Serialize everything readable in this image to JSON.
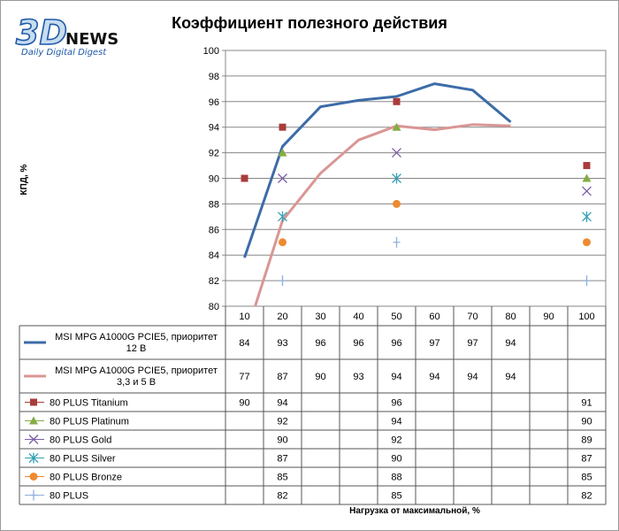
{
  "logo": {
    "brand_3d": "3D",
    "brand_news": "NEWS",
    "tagline": "Daily Digital Digest"
  },
  "chart_data": {
    "type": "line",
    "title": "Коэффициент полезного действия",
    "xlabel": "Нагрузка  от максимальной,  %",
    "ylabel": "КПД, %",
    "ylim": [
      80,
      100
    ],
    "yticks": [
      "80",
      "82",
      "84",
      "86",
      "88",
      "90",
      "92",
      "94",
      "96",
      "98",
      "100"
    ],
    "categories": [
      "10",
      "20",
      "30",
      "40",
      "50",
      "60",
      "70",
      "80",
      "90",
      "100"
    ],
    "grid": true,
    "legend": "data-table",
    "series": [
      {
        "name": "MSI MPG A1000G PCIE5, приоритет 12 В",
        "kind": "line",
        "color": "#3c6ca8",
        "values": [
          83.8,
          92.5,
          95.6,
          96.1,
          96.4,
          97.4,
          96.9,
          94.4,
          null,
          null
        ],
        "labels": [
          "84",
          "93",
          "96",
          "96",
          "96",
          "97",
          "97",
          "94",
          "",
          ""
        ]
      },
      {
        "name": "MSI MPG A1000G PCIE5, приоритет 3,3 и 5 В",
        "kind": "line",
        "color": "#d99694",
        "values": [
          77.4,
          86.7,
          90.4,
          93.0,
          94.1,
          93.8,
          94.2,
          94.1,
          null,
          null
        ],
        "labels": [
          "77",
          "87",
          "90",
          "93",
          "94",
          "94",
          "94",
          "94",
          "",
          ""
        ]
      },
      {
        "name": "80 PLUS Titanium",
        "kind": "marker",
        "marker": "square",
        "color": "#a83c3a",
        "values": [
          90,
          94,
          null,
          null,
          96,
          null,
          null,
          null,
          null,
          91
        ],
        "labels": [
          "90",
          "94",
          "",
          "",
          "96",
          "",
          "",
          "",
          "",
          "91"
        ]
      },
      {
        "name": "80 PLUS Platinum",
        "kind": "marker",
        "marker": "triangle",
        "color": "#86ac44",
        "values": [
          null,
          92,
          null,
          null,
          94,
          null,
          null,
          null,
          null,
          90
        ],
        "labels": [
          "",
          "92",
          "",
          "",
          "94",
          "",
          "",
          "",
          "",
          "90"
        ]
      },
      {
        "name": "80 PLUS Gold",
        "kind": "marker",
        "marker": "x",
        "color": "#7a5fa6",
        "values": [
          null,
          90,
          null,
          null,
          92,
          null,
          null,
          null,
          null,
          89
        ],
        "labels": [
          "",
          "90",
          "",
          "",
          "92",
          "",
          "",
          "",
          "",
          "89"
        ]
      },
      {
        "name": "80 PLUS Silver",
        "kind": "marker",
        "marker": "star",
        "color": "#34a0b4",
        "values": [
          null,
          87,
          null,
          null,
          90,
          null,
          null,
          null,
          null,
          87
        ],
        "labels": [
          "",
          "87",
          "",
          "",
          "90",
          "",
          "",
          "",
          "",
          "87"
        ]
      },
      {
        "name": "80 PLUS Bronze",
        "kind": "marker",
        "marker": "circle",
        "color": "#ee8a32",
        "values": [
          null,
          85,
          null,
          null,
          88,
          null,
          null,
          null,
          null,
          85
        ],
        "labels": [
          "",
          "85",
          "",
          "",
          "88",
          "",
          "",
          "",
          "",
          "85"
        ]
      },
      {
        "name": "80 PLUS",
        "kind": "marker",
        "marker": "plus",
        "color": "#8eaedb",
        "values": [
          null,
          82,
          null,
          null,
          85,
          null,
          null,
          null,
          null,
          82
        ],
        "labels": [
          "",
          "82",
          "",
          "",
          "85",
          "",
          "",
          "",
          "",
          "82"
        ]
      }
    ]
  }
}
